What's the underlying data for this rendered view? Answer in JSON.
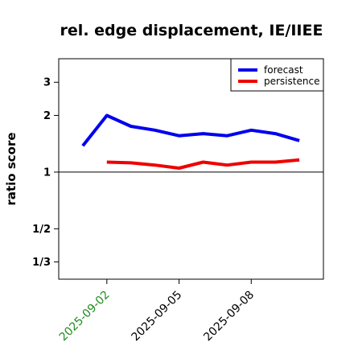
{
  "chart_data": {
    "type": "line",
    "title": "rel. edge displacement, IE/IIEE",
    "xlabel": "",
    "ylabel": "ratio score",
    "y_scale": "log",
    "ylim": [
      0.27,
      4.0
    ],
    "xlim": [
      "2025-08-31",
      "2025-09-11"
    ],
    "y_ticks": [
      {
        "value": 0.3333,
        "label": "1/3"
      },
      {
        "value": 0.5,
        "label": "1/2"
      },
      {
        "value": 1,
        "label": "1"
      },
      {
        "value": 2,
        "label": "2"
      },
      {
        "value": 3,
        "label": "3"
      }
    ],
    "x_ticks": [
      {
        "value": "2025-09-02",
        "label": "2025-09-02",
        "color": "#228B22"
      },
      {
        "value": "2025-09-05",
        "label": "2025-09-05",
        "color": "#000000"
      },
      {
        "value": "2025-09-08",
        "label": "2025-09-08",
        "color": "#000000"
      }
    ],
    "reference_line": 1,
    "x": [
      "2025-09-01",
      "2025-09-02",
      "2025-09-03",
      "2025-09-04",
      "2025-09-05",
      "2025-09-06",
      "2025-09-07",
      "2025-09-08",
      "2025-09-09",
      "2025-09-10"
    ],
    "series": [
      {
        "name": "forecast",
        "color": "#0000ee",
        "values": [
          null,
          2.0,
          1.75,
          1.67,
          1.56,
          1.6,
          1.56,
          1.67,
          1.6,
          1.47
        ],
        "first_point": {
          "x": "2025-09-01",
          "y": 1.38
        }
      },
      {
        "name": "persistence",
        "color": "#ee0000",
        "values": [
          null,
          1.13,
          1.12,
          1.09,
          1.05,
          1.13,
          1.09,
          1.13,
          1.13,
          1.16
        ]
      }
    ],
    "legend_position": "top-right",
    "grid": false
  }
}
